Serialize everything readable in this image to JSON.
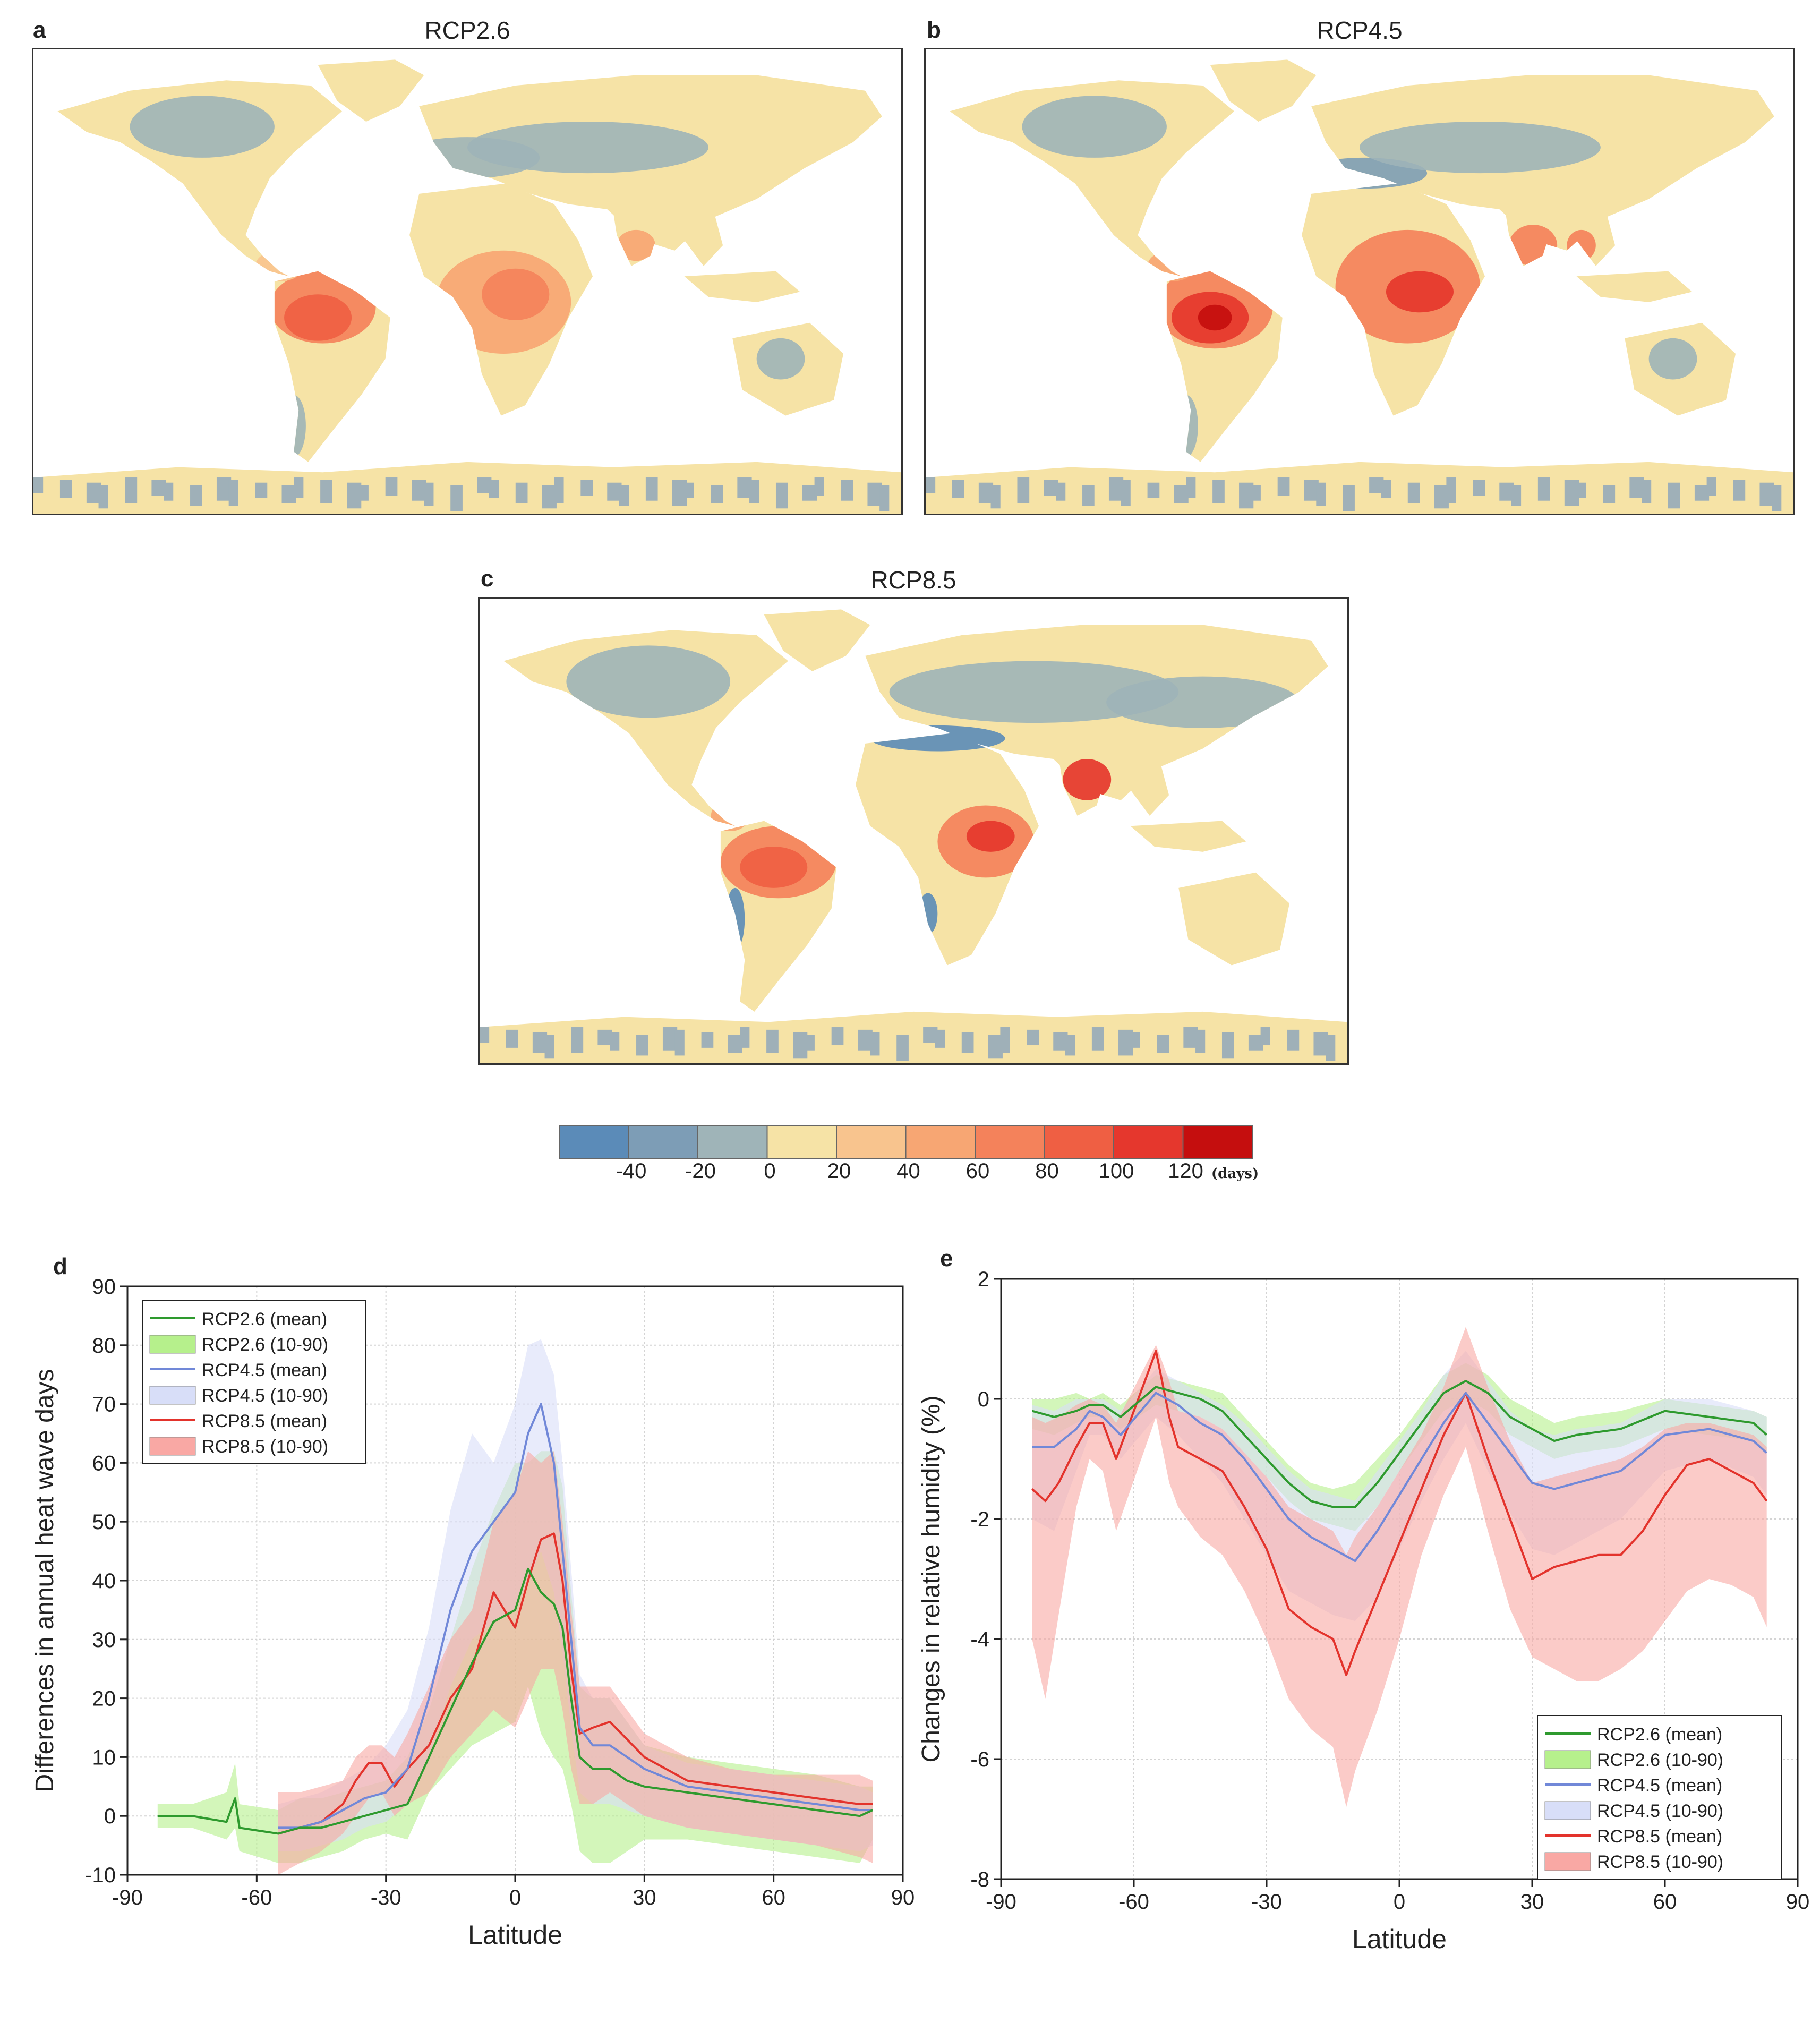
{
  "panels": {
    "a": {
      "letter": "a",
      "title": "RCP2.6"
    },
    "b": {
      "letter": "b",
      "title": "RCP4.5"
    },
    "c": {
      "letter": "c",
      "title": "RCP8.5"
    },
    "d": {
      "letter": "d"
    },
    "e": {
      "letter": "e"
    }
  },
  "colorbar": {
    "colors": [
      "#5b8bb8",
      "#7d9db6",
      "#9fb4b8",
      "#f6e3a6",
      "#f8c48e",
      "#f7a673",
      "#f4825b",
      "#ef5f43",
      "#e5372d",
      "#c50e0e"
    ],
    "labels": [
      "-40",
      "-20",
      "0",
      "20",
      "40",
      "60",
      "80",
      "100",
      "120"
    ],
    "unit": "(days)"
  },
  "map_colors": {
    "land_neutral": "#f6e3a6",
    "land_negative": "#9fb0b8",
    "ocean": "#ffffff"
  },
  "chart_data": [
    {
      "id": "d",
      "type": "line",
      "title": "",
      "xlabel": "Latitude",
      "ylabel": "Differences in annual heat wave days",
      "xlim": [
        -90,
        90
      ],
      "ylim": [
        -10,
        90
      ],
      "xticks": [
        -90,
        -60,
        -30,
        0,
        30,
        60,
        90
      ],
      "yticks": [
        -10,
        0,
        10,
        20,
        30,
        40,
        50,
        60,
        70,
        80,
        90
      ],
      "grid": true,
      "legend_position": "top-left",
      "series": [
        {
          "name": "RCP2.6 (mean)",
          "color": "#2e9a2e",
          "band_name": "RCP2.6 (10-90)",
          "band_color": "#b6f08c",
          "x": [
            -83,
            -75,
            -67,
            -65,
            -64,
            -55,
            -50,
            -45,
            -40,
            -35,
            -30,
            -25,
            -20,
            -15,
            -10,
            -5,
            0,
            3,
            6,
            9,
            11,
            13,
            15,
            18,
            22,
            26,
            30,
            40,
            50,
            60,
            70,
            80,
            83
          ],
          "values": [
            0,
            0,
            -1,
            3,
            -2,
            -3,
            -2,
            -2,
            -1,
            0,
            1,
            2,
            10,
            18,
            26,
            33,
            35,
            42,
            38,
            36,
            32,
            20,
            10,
            8,
            8,
            6,
            5,
            4,
            3,
            2,
            1,
            0,
            1
          ],
          "low": [
            -2,
            -2,
            -4,
            -2,
            -6,
            -8,
            -8,
            -7,
            -6,
            -4,
            -3,
            -4,
            4,
            8,
            12,
            14,
            16,
            22,
            14,
            10,
            8,
            2,
            -6,
            -8,
            -8,
            -6,
            -4,
            -4,
            -5,
            -6,
            -7,
            -8,
            -4
          ],
          "high": [
            2,
            2,
            4,
            9,
            2,
            1,
            3,
            3,
            4,
            5,
            6,
            10,
            18,
            30,
            42,
            52,
            60,
            60,
            62,
            62,
            56,
            38,
            22,
            20,
            20,
            16,
            12,
            10,
            9,
            8,
            7,
            5,
            5
          ]
        },
        {
          "name": "RCP4.5 (mean)",
          "color": "#7188d8",
          "band_name": "RCP4.5 (10-90)",
          "band_color": "#d8def8",
          "x": [
            -55,
            -50,
            -45,
            -40,
            -35,
            -30,
            -25,
            -20,
            -15,
            -10,
            -5,
            0,
            3,
            6,
            9,
            11,
            13,
            15,
            18,
            22,
            26,
            30,
            40,
            50,
            60,
            70,
            80,
            83
          ],
          "values": [
            -2,
            -2,
            -1,
            1,
            3,
            4,
            8,
            20,
            35,
            45,
            50,
            55,
            65,
            70,
            60,
            45,
            30,
            15,
            12,
            12,
            10,
            8,
            5,
            4,
            3,
            2,
            1,
            1
          ],
          "low": [
            -6,
            -6,
            -5,
            -4,
            -2,
            -1,
            2,
            10,
            22,
            30,
            33,
            35,
            40,
            45,
            38,
            28,
            15,
            4,
            2,
            2,
            1,
            0,
            -2,
            -3,
            -4,
            -5,
            -6,
            -5
          ],
          "high": [
            2,
            3,
            4,
            6,
            8,
            12,
            18,
            32,
            52,
            65,
            60,
            70,
            80,
            81,
            75,
            60,
            42,
            24,
            20,
            20,
            16,
            12,
            9,
            8,
            7,
            6,
            5,
            4
          ]
        },
        {
          "name": "RCP8.5 (mean)",
          "color": "#e3332c",
          "band_name": "RCP8.5 (10-90)",
          "band_color": "#f9a8a4",
          "x": [
            -55,
            -50,
            -45,
            -40,
            -37,
            -34,
            -31,
            -28,
            -25,
            -20,
            -15,
            -10,
            -5,
            0,
            3,
            6,
            9,
            11,
            13,
            15,
            18,
            22,
            26,
            30,
            40,
            50,
            60,
            70,
            80,
            83
          ],
          "values": [
            -3,
            -2,
            -1,
            2,
            6,
            9,
            9,
            5,
            8,
            12,
            20,
            25,
            38,
            32,
            40,
            47,
            48,
            40,
            25,
            14,
            15,
            16,
            13,
            10,
            6,
            5,
            4,
            3,
            2,
            2
          ],
          "low": [
            -10,
            -8,
            -6,
            -3,
            0,
            3,
            4,
            0,
            2,
            4,
            10,
            14,
            18,
            15,
            20,
            25,
            25,
            18,
            8,
            2,
            2,
            4,
            2,
            0,
            -2,
            -3,
            -4,
            -5,
            -7,
            -8
          ],
          "high": [
            4,
            4,
            5,
            6,
            10,
            12,
            12,
            10,
            14,
            22,
            30,
            35,
            50,
            55,
            62,
            60,
            62,
            50,
            35,
            22,
            22,
            22,
            18,
            14,
            10,
            8,
            7,
            7,
            7,
            6
          ]
        }
      ]
    },
    {
      "id": "e",
      "type": "line",
      "title": "",
      "xlabel": "Latitude",
      "ylabel": "Changes in relative humidity (%)",
      "xlim": [
        -90,
        90
      ],
      "ylim": [
        -8,
        2
      ],
      "xticks": [
        -90,
        -60,
        -30,
        0,
        30,
        60,
        90
      ],
      "yticks": [
        -8,
        -6,
        -4,
        -2,
        0,
        2
      ],
      "grid": true,
      "legend_position": "bottom-right",
      "series": [
        {
          "name": "RCP2.6 (mean)",
          "color": "#2e9a2e",
          "band_name": "RCP2.6 (10-90)",
          "band_color": "#b6f08c",
          "x": [
            -83,
            -78,
            -73,
            -70,
            -67,
            -63,
            -55,
            -50,
            -45,
            -40,
            -35,
            -30,
            -25,
            -20,
            -15,
            -10,
            -5,
            0,
            5,
            10,
            15,
            20,
            25,
            30,
            35,
            40,
            50,
            60,
            70,
            80,
            83
          ],
          "values": [
            -0.2,
            -0.3,
            -0.2,
            -0.1,
            -0.1,
            -0.3,
            0.2,
            0.1,
            0,
            -0.2,
            -0.6,
            -1.0,
            -1.4,
            -1.7,
            -1.8,
            -1.8,
            -1.4,
            -0.9,
            -0.4,
            0.1,
            0.3,
            0.1,
            -0.3,
            -0.5,
            -0.7,
            -0.6,
            -0.5,
            -0.2,
            -0.3,
            -0.4,
            -0.6
          ],
          "low": [
            -0.5,
            -0.6,
            -0.4,
            -0.3,
            -0.3,
            -0.5,
            -0.1,
            -0.2,
            -0.3,
            -0.5,
            -0.9,
            -1.3,
            -1.7,
            -2.0,
            -2.1,
            -2.2,
            -1.8,
            -1.2,
            -0.7,
            -0.2,
            0,
            -0.2,
            -0.6,
            -0.8,
            -1.0,
            -0.9,
            -0.8,
            -0.5,
            -0.6,
            -0.7,
            -0.9
          ],
          "high": [
            0,
            0,
            0.1,
            0,
            0.1,
            -0.1,
            0.4,
            0.3,
            0.2,
            0.1,
            -0.3,
            -0.7,
            -1.1,
            -1.4,
            -1.5,
            -1.4,
            -1.0,
            -0.6,
            -0.1,
            0.4,
            0.6,
            0.4,
            0,
            -0.2,
            -0.4,
            -0.3,
            -0.2,
            0,
            -0.1,
            -0.2,
            -0.3
          ]
        },
        {
          "name": "RCP4.5 (mean)",
          "color": "#7188d8",
          "band_name": "RCP4.5 (10-90)",
          "band_color": "#d8def8",
          "x": [
            -83,
            -78,
            -73,
            -70,
            -67,
            -63,
            -55,
            -50,
            -45,
            -40,
            -35,
            -30,
            -25,
            -20,
            -15,
            -10,
            -5,
            0,
            5,
            10,
            15,
            20,
            25,
            30,
            35,
            40,
            50,
            60,
            70,
            80,
            83
          ],
          "values": [
            -0.8,
            -0.8,
            -0.5,
            -0.2,
            -0.3,
            -0.6,
            0.1,
            -0.1,
            -0.4,
            -0.6,
            -1.0,
            -1.5,
            -2.0,
            -2.3,
            -2.5,
            -2.7,
            -2.2,
            -1.6,
            -1.0,
            -0.4,
            0.1,
            -0.4,
            -0.9,
            -1.4,
            -1.5,
            -1.4,
            -1.2,
            -0.6,
            -0.5,
            -0.7,
            -0.9
          ],
          "low": [
            -2.0,
            -2.2,
            -1.2,
            -0.6,
            -0.6,
            -1.0,
            -0.3,
            -0.6,
            -1.0,
            -1.4,
            -2.0,
            -2.6,
            -3.2,
            -3.4,
            -3.6,
            -3.7,
            -3.3,
            -2.5,
            -1.7,
            -1.0,
            -0.4,
            -1.2,
            -1.9,
            -2.5,
            -2.6,
            -2.4,
            -2.0,
            -1.2,
            -1.0,
            -1.3,
            -1.6
          ],
          "high": [
            -0.1,
            -0.2,
            0,
            0,
            0,
            -0.2,
            0.5,
            0.3,
            0.1,
            -0.1,
            -0.4,
            -0.8,
            -1.2,
            -1.5,
            -1.6,
            -1.7,
            -1.2,
            -0.7,
            -0.2,
            0.4,
            0.8,
            0.3,
            -0.2,
            -0.5,
            -0.6,
            -0.5,
            -0.4,
            0,
            0,
            -0.2,
            -0.3
          ]
        },
        {
          "name": "RCP8.5 (mean)",
          "color": "#e3332c",
          "band_name": "RCP8.5 (10-90)",
          "band_color": "#f9a8a4",
          "x": [
            -83,
            -80,
            -77,
            -73,
            -70,
            -67,
            -64,
            -55,
            -52,
            -50,
            -45,
            -40,
            -35,
            -30,
            -25,
            -20,
            -15,
            -12,
            -10,
            -5,
            0,
            5,
            10,
            15,
            20,
            25,
            30,
            35,
            40,
            45,
            50,
            55,
            60,
            65,
            70,
            75,
            80,
            83
          ],
          "values": [
            -1.5,
            -1.7,
            -1.4,
            -0.8,
            -0.4,
            -0.4,
            -1.0,
            0.8,
            -0.3,
            -0.8,
            -1.0,
            -1.2,
            -1.8,
            -2.5,
            -3.5,
            -3.8,
            -4.0,
            -4.6,
            -4.2,
            -3.3,
            -2.4,
            -1.5,
            -0.6,
            0.1,
            -1.0,
            -2.0,
            -3.0,
            -2.8,
            -2.7,
            -2.6,
            -2.6,
            -2.2,
            -1.6,
            -1.1,
            -1.0,
            -1.2,
            -1.4,
            -1.7
          ],
          "low": [
            -4.0,
            -5.0,
            -3.6,
            -1.8,
            -1.0,
            -1.2,
            -2.2,
            -0.3,
            -1.4,
            -1.8,
            -2.3,
            -2.6,
            -3.2,
            -4.0,
            -5.0,
            -5.5,
            -5.8,
            -6.8,
            -6.2,
            -5.2,
            -4.0,
            -2.6,
            -1.6,
            -0.8,
            -2.2,
            -3.5,
            -4.3,
            -4.5,
            -4.7,
            -4.7,
            -4.5,
            -4.2,
            -3.7,
            -3.2,
            -3.0,
            -3.1,
            -3.3,
            -3.8
          ],
          "high": [
            -0.3,
            -0.4,
            -0.3,
            -0.1,
            0,
            -0.1,
            -0.4,
            0.9,
            0.3,
            -0.2,
            -0.3,
            -0.5,
            -0.9,
            -1.3,
            -1.8,
            -2.0,
            -2.2,
            -2.6,
            -2.3,
            -1.8,
            -1.2,
            -0.6,
            0.2,
            1.2,
            0.2,
            -0.7,
            -1.4,
            -1.3,
            -1.2,
            -1.1,
            -1.0,
            -0.8,
            -0.5,
            -0.4,
            -0.4,
            -0.5,
            -0.6,
            -0.8
          ]
        }
      ]
    }
  ]
}
